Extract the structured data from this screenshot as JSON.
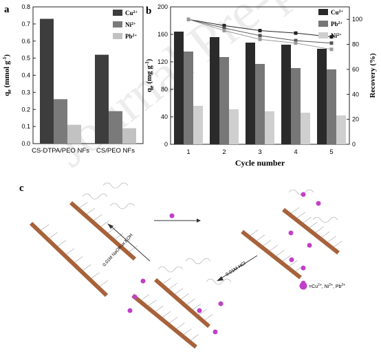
{
  "panel_a_letter": "a",
  "panel_b_letter": "b",
  "panel_c_letter": "c",
  "watermark": "Journal Pre-proof",
  "chart_data": [
    {
      "type": "bar",
      "panel": "a",
      "categories": [
        "CS-DTPA/PEO NFs",
        "CS/PEO NFs"
      ],
      "series": [
        {
          "name": "Cu",
          "ion_charge": "2+",
          "values": [
            0.73,
            0.52
          ],
          "color": "#3d3d3d"
        },
        {
          "name": "Ni",
          "ion_charge": "2+",
          "values": [
            0.26,
            0.19
          ],
          "color": "#7a7a7a"
        },
        {
          "name": "Pb",
          "ion_charge": "2+",
          "values": [
            0.11,
            0.09
          ],
          "color": "#c2c2c2"
        }
      ],
      "ylabel": "q",
      "ylabel_sub": "e",
      "ylabel_unit": " (mmol g",
      "ylabel_unit_sup": "-1",
      "ylabel_unit_end": ")",
      "ylim": [
        0.0,
        0.8
      ],
      "yticks": [
        "0.0",
        "0.1",
        "0.2",
        "0.3",
        "0.4",
        "0.5",
        "0.6",
        "0.7",
        "0.8"
      ],
      "legend": "top-right"
    },
    {
      "type": "bar",
      "panel": "b",
      "categories": [
        "1",
        "2",
        "3",
        "4",
        "5"
      ],
      "series": [
        {
          "name": "Cu",
          "ion_charge": "2+",
          "values": [
            164,
            156,
            148,
            145,
            139
          ],
          "color": "#2a2a2a"
        },
        {
          "name": "Pb",
          "ion_charge": "2+",
          "values": [
            135,
            127,
            117,
            111,
            109
          ],
          "color": "#777777"
        },
        {
          "name": "Ni",
          "ion_charge": "2+",
          "values": [
            56,
            51,
            48,
            46,
            42
          ],
          "color": "#cfcfcf"
        }
      ],
      "recovery_series": [
        {
          "values": [
            100,
            95,
            91,
            89,
            86
          ],
          "marker": "square",
          "color": "#222222"
        },
        {
          "values": [
            100,
            93,
            87,
            83,
            81
          ],
          "marker": "square",
          "color": "#555555"
        },
        {
          "values": [
            100,
            91,
            84,
            81,
            76
          ],
          "marker": "square",
          "color": "#999999"
        }
      ],
      "xlabel": "Cycle number",
      "ylabel": "q",
      "ylabel_sub": "e",
      "ylabel_unit": " (mg g",
      "ylabel_unit_sup": "-1",
      "ylabel_unit_end": ")",
      "y2label": "Recovery (%)",
      "ylim": [
        0,
        200
      ],
      "yticks": [
        "0",
        "40",
        "80",
        "120",
        "160",
        "200"
      ],
      "y2lim": [
        0,
        110
      ],
      "y2ticks": [
        "0",
        "20",
        "40",
        "60",
        "80",
        "100"
      ],
      "legend": "top-right"
    }
  ],
  "diagram": {
    "reaction_forward": "",
    "reaction_acid": "0.01M HCl",
    "reaction_base": "0.01M NaOH or KOH",
    "legend_label": "=Cu",
    "legend_sup1": "2+",
    "legend_mid1": ", Ni",
    "legend_sup2": "2+",
    "legend_mid2": ", Pb",
    "legend_sup3": "2+",
    "ion_color": "#c040c8",
    "fiber_color": "#a8623a"
  }
}
